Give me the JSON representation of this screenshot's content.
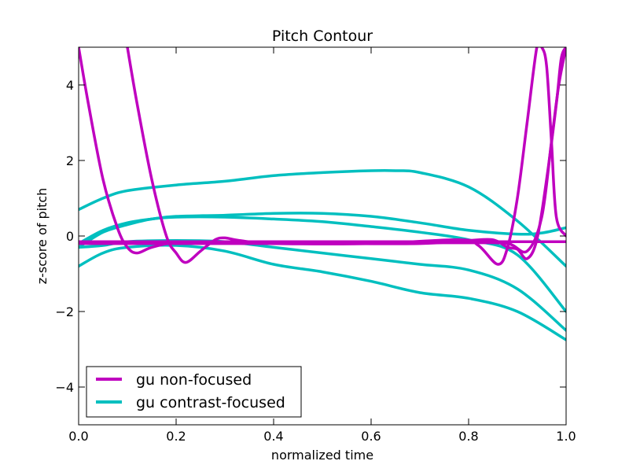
{
  "chart_data": {
    "type": "line",
    "title": "Pitch Contour",
    "xlabel": "normalized time",
    "ylabel": "z-score of pitch",
    "xlim": [
      0.0,
      1.0
    ],
    "ylim": [
      -5,
      5
    ],
    "xticks": [
      0.0,
      0.2,
      0.4,
      0.6,
      0.8,
      1.0
    ],
    "xtick_labels": [
      "0.0",
      "0.2",
      "0.4",
      "0.6",
      "0.8",
      "1.0"
    ],
    "yticks": [
      -4,
      -2,
      0,
      2,
      4
    ],
    "ytick_labels": [
      "−4",
      "−2",
      "0",
      "2",
      "4"
    ],
    "grid": false,
    "legend": {
      "location": "lower-left",
      "entries": [
        {
          "label": "gu non-focused",
          "color": "#bf00bf"
        },
        {
          "label": "gu contrast-focused",
          "color": "#00bfbf"
        }
      ]
    },
    "series": [
      {
        "group": "gu contrast-focused",
        "color": "#00bfbf",
        "x": [
          0.0,
          0.05,
          0.1,
          0.2,
          0.3,
          0.4,
          0.5,
          0.6,
          0.65,
          0.7,
          0.8,
          0.9,
          1.0
        ],
        "y": [
          0.7,
          1.0,
          1.2,
          1.35,
          1.45,
          1.6,
          1.68,
          1.73,
          1.73,
          1.68,
          1.3,
          0.4,
          -0.8
        ]
      },
      {
        "group": "gu contrast-focused",
        "color": "#00bfbf",
        "x": [
          0.0,
          0.05,
          0.1,
          0.15,
          0.2,
          0.3,
          0.4,
          0.5,
          0.6,
          0.7,
          0.8,
          0.9,
          0.95,
          1.0
        ],
        "y": [
          -0.2,
          0.15,
          0.35,
          0.45,
          0.52,
          0.55,
          0.6,
          0.6,
          0.52,
          0.35,
          0.15,
          0.05,
          0.08,
          0.22
        ]
      },
      {
        "group": "gu contrast-focused",
        "color": "#00bfbf",
        "x": [
          0.0,
          0.05,
          0.1,
          0.15,
          0.2,
          0.3,
          0.4,
          0.5,
          0.6,
          0.7,
          0.8,
          0.9,
          1.0
        ],
        "y": [
          -0.3,
          0.1,
          0.3,
          0.45,
          0.5,
          0.5,
          0.45,
          0.38,
          0.25,
          0.1,
          -0.1,
          -0.5,
          -2.0
        ]
      },
      {
        "group": "gu contrast-focused",
        "color": "#00bfbf",
        "x": [
          0.0,
          0.05,
          0.1,
          0.2,
          0.3,
          0.4,
          0.5,
          0.6,
          0.7,
          0.8,
          0.9,
          1.0
        ],
        "y": [
          -0.3,
          -0.25,
          -0.15,
          -0.12,
          -0.15,
          -0.3,
          -0.45,
          -0.6,
          -0.75,
          -0.9,
          -1.4,
          -2.5
        ]
      },
      {
        "group": "gu contrast-focused",
        "color": "#00bfbf",
        "x": [
          0.0,
          0.05,
          0.1,
          0.2,
          0.3,
          0.4,
          0.5,
          0.6,
          0.7,
          0.8,
          0.9,
          1.0
        ],
        "y": [
          -0.8,
          -0.45,
          -0.3,
          -0.25,
          -0.4,
          -0.75,
          -0.95,
          -1.2,
          -1.5,
          -1.65,
          -2.0,
          -2.75
        ]
      },
      {
        "group": "gu non-focused",
        "color": "#bf00bf",
        "x": [
          0.0,
          0.02,
          0.05,
          0.08,
          0.1,
          0.12,
          0.15,
          0.2,
          0.3,
          0.5,
          0.7,
          0.8,
          0.88,
          0.92,
          0.95,
          0.97,
          0.985,
          1.0
        ],
        "y": [
          5.0,
          3.5,
          1.5,
          0.2,
          -0.3,
          -0.45,
          -0.3,
          -0.18,
          -0.18,
          -0.18,
          -0.18,
          -0.18,
          -0.2,
          -0.4,
          0.5,
          2.5,
          4.0,
          5.0
        ]
      },
      {
        "group": "gu non-focused",
        "color": "#bf00bf",
        "x": [
          0.1,
          0.12,
          0.15,
          0.18,
          0.2,
          0.22,
          0.25,
          0.28,
          0.3,
          0.33,
          0.4,
          0.6,
          0.78,
          0.82,
          0.86,
          0.88,
          0.9,
          0.92,
          0.94,
          0.95,
          0.96,
          0.97,
          0.98,
          1.0
        ],
        "y": [
          5.0,
          3.5,
          1.5,
          0.0,
          -0.45,
          -0.7,
          -0.4,
          -0.1,
          -0.05,
          -0.12,
          -0.2,
          -0.2,
          -0.1,
          -0.25,
          -0.75,
          -0.3,
          1.0,
          3.0,
          5.0,
          5.0,
          4.5,
          2.5,
          0.5,
          0.0
        ]
      },
      {
        "group": "gu non-focused",
        "color": "#bf00bf",
        "x": [
          0.0,
          0.3,
          0.5,
          0.7,
          0.8,
          0.85,
          0.88,
          0.9,
          0.92,
          0.94,
          0.96,
          0.98,
          0.99,
          1.0
        ],
        "y": [
          -0.2,
          -0.2,
          -0.2,
          -0.2,
          -0.12,
          -0.1,
          -0.3,
          -0.35,
          -0.6,
          -0.1,
          1.5,
          3.5,
          4.7,
          5.0
        ]
      },
      {
        "group": "gu non-focused",
        "color": "#bf00bf",
        "x": [
          0.0,
          0.5,
          1.0
        ],
        "y": [
          -0.15,
          -0.15,
          -0.15
        ]
      }
    ]
  }
}
